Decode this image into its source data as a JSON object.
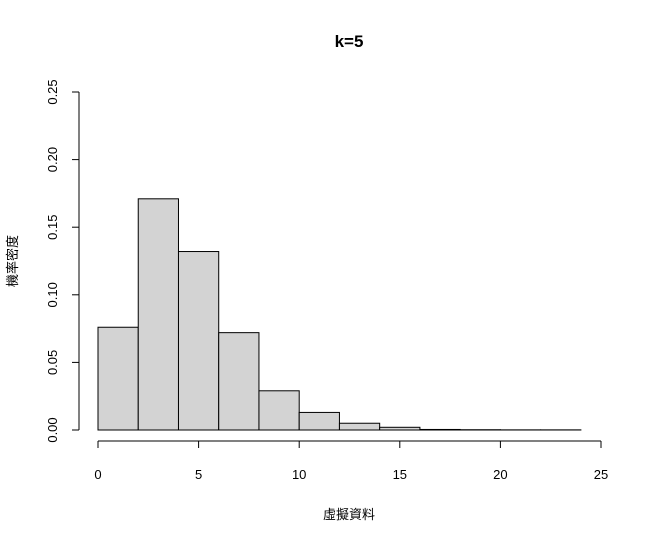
{
  "chart_data": {
    "type": "bar",
    "subtype": "histogram",
    "title": "k=5",
    "xlabel": "虛擬資料",
    "ylabel": "機率密度",
    "bin_edges": [
      0,
      2,
      4,
      6,
      8,
      10,
      12,
      14,
      16,
      18,
      20,
      22,
      24
    ],
    "values": [
      0.076,
      0.171,
      0.132,
      0.072,
      0.029,
      0.013,
      0.005,
      0.002,
      0.0004,
      0.0002,
      0.0001,
      0.0001
    ],
    "xlim": [
      0,
      25
    ],
    "ylim": [
      0,
      0.25
    ],
    "x_ticks": [
      "0",
      "5",
      "10",
      "15",
      "20",
      "25"
    ],
    "x_tick_values": [
      0,
      5,
      10,
      15,
      20,
      25
    ],
    "y_ticks": [
      "0.00",
      "0.05",
      "0.10",
      "0.15",
      "0.20",
      "0.25"
    ],
    "y_tick_values": [
      0,
      0.05,
      0.1,
      0.15,
      0.2,
      0.25
    ],
    "bar_fill": "#d3d3d3",
    "bar_stroke": "#000000",
    "grid": false
  }
}
